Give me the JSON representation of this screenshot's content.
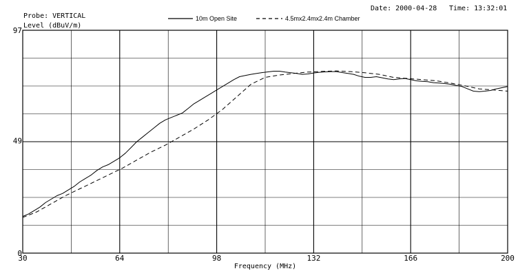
{
  "header": {
    "probe_label": "Probe: VERTICAL",
    "level_label": "Level (dBuV/m)",
    "date_label": "Date: 2000-04-28",
    "time_label": "Time: 13:32:01"
  },
  "chart_data": {
    "type": "line",
    "xlabel": "Frequency (MHz)",
    "ylabel": "Level (dBuV/m)",
    "xlim": [
      30,
      200
    ],
    "ylim": [
      0,
      97
    ],
    "x_ticks": [
      30,
      64,
      98,
      132,
      166,
      200
    ],
    "y_ticks": [
      0,
      49,
      97
    ],
    "grid": true,
    "legend_position": "top-center",
    "series": [
      {
        "name": "10m Open Site",
        "style": "solid",
        "x": [
          30,
          32,
          34,
          36,
          38,
          40,
          42,
          44,
          46,
          48,
          50,
          52,
          54,
          56,
          58,
          60,
          62,
          64,
          66,
          68,
          70,
          72,
          74,
          76,
          78,
          80,
          82,
          84,
          86,
          88,
          90,
          92,
          94,
          96,
          98,
          100,
          102,
          104,
          106,
          108,
          110,
          112,
          114,
          116,
          118,
          120,
          122,
          124,
          126,
          128,
          130,
          132,
          134,
          136,
          138,
          140,
          142,
          144,
          146,
          148,
          150,
          152,
          154,
          156,
          158,
          160,
          162,
          164,
          166,
          168,
          170,
          172,
          174,
          176,
          178,
          180,
          182,
          184,
          186,
          188,
          190,
          192,
          194,
          196,
          198,
          200
        ],
        "y": [
          16,
          17,
          18.5,
          20,
          22,
          23.5,
          25,
          26,
          27.5,
          29,
          31,
          32.5,
          34,
          36,
          37.5,
          38.5,
          40,
          41.5,
          43.5,
          46,
          48.5,
          50.5,
          52.5,
          54.5,
          56.5,
          58,
          59,
          60,
          61,
          63,
          65,
          66.5,
          68,
          69.5,
          71,
          72.5,
          74,
          75.5,
          76.8,
          77.3,
          77.8,
          78.2,
          78.6,
          78.9,
          79.2,
          79.2,
          78.8,
          78.5,
          78.2,
          77.8,
          78,
          78.4,
          78.7,
          78.9,
          79,
          79,
          78.6,
          78.2,
          77.8,
          77,
          76.5,
          76.5,
          76.8,
          76.3,
          75.8,
          75.5,
          75.8,
          76,
          75.5,
          75,
          74.8,
          74.6,
          74.2,
          74,
          73.8,
          73.5,
          73,
          72.5,
          71.5,
          70.5,
          70.3,
          70.5,
          70.8,
          71.5,
          72,
          72.5
        ]
      },
      {
        "name": "4.5mx2.4mx2.4m Chamber",
        "style": "dashed",
        "x": [
          30,
          35,
          40,
          45,
          50,
          55,
          60,
          65,
          70,
          75,
          80,
          85,
          90,
          95,
          100,
          105,
          110,
          115,
          120,
          125,
          130,
          135,
          140,
          145,
          150,
          155,
          160,
          165,
          170,
          175,
          180,
          185,
          190,
          195,
          200
        ],
        "y": [
          15.5,
          18,
          21.5,
          25,
          28,
          31,
          34,
          37,
          40.5,
          44,
          47,
          50.5,
          54,
          58,
          62.5,
          68,
          73.5,
          76.5,
          77.5,
          78.2,
          78.8,
          79.1,
          79.3,
          79,
          78.5,
          77.8,
          76.5,
          76,
          75.5,
          75,
          74,
          72.8,
          71.5,
          71,
          70.5
        ]
      }
    ]
  }
}
